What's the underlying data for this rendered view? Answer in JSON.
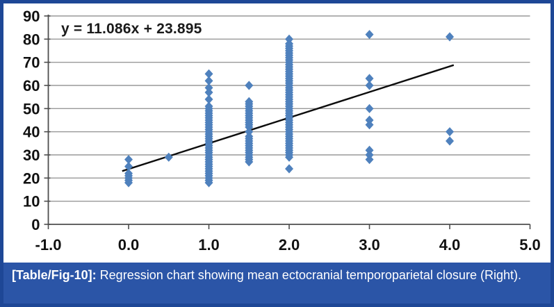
{
  "caption": {
    "label": "[Table/Fig-10]:",
    "text": " Regression chart showing mean ectocranial temporoparietal closure (Right)."
  },
  "colors": {
    "marker": "#4F81BD",
    "trendline": "#0d0d0d",
    "gridline": "#999999",
    "axis": "#4d4d4d",
    "tick_text": "#111111",
    "chart_bg": "#ffffff",
    "caption_bg": "#2B55A7",
    "border": "#1E4796",
    "caption_text": "#ffffff"
  },
  "chart_data": {
    "type": "scatter",
    "title": "",
    "xlabel": "",
    "ylabel": "",
    "equation": "y = 11.086x + 23.895",
    "xlim": [
      -1.0,
      5.0
    ],
    "ylim": [
      0,
      90
    ],
    "grid": true,
    "legend_position": "none",
    "x_tick_values": [
      -1,
      0,
      1,
      2,
      3,
      4,
      5
    ],
    "x_tick_labels": [
      "-1.0",
      "0.0",
      "1.0",
      "2.0",
      "3.0",
      "4.0",
      "5.0"
    ],
    "y_tick_values": [
      0,
      10,
      20,
      30,
      40,
      50,
      60,
      70,
      80,
      90
    ],
    "y_tick_labels": [
      "0",
      "10",
      "20",
      "30",
      "40",
      "50",
      "60",
      "70",
      "80",
      "90"
    ],
    "trendline": {
      "slope": 11.086,
      "intercept": 23.895,
      "x_start": -0.08,
      "x_end": 4.05
    },
    "points": [
      {
        "x": 0.0,
        "y": [
          28,
          25,
          22,
          21,
          20,
          19,
          18
        ]
      },
      {
        "x": 0.5,
        "y": [
          29
        ]
      },
      {
        "x": 1.0,
        "y": [
          65,
          62,
          59,
          57,
          54,
          51,
          50,
          49,
          48,
          47,
          46,
          45,
          44,
          43,
          42,
          41,
          40,
          39,
          38,
          37,
          36,
          35,
          34,
          33,
          32,
          31,
          30,
          29,
          28,
          27,
          26,
          25,
          24,
          23,
          22,
          21,
          20,
          19,
          18
        ]
      },
      {
        "x": 1.5,
        "y": [
          60,
          53,
          52,
          51,
          50,
          49,
          48,
          47,
          46,
          45,
          44,
          43,
          42,
          40,
          38,
          37,
          36,
          35,
          34,
          33,
          32,
          31,
          30,
          29,
          28,
          27
        ]
      },
      {
        "x": 2.0,
        "y": [
          80,
          78,
          77,
          76,
          75,
          74,
          73,
          72,
          71,
          70,
          69,
          68,
          67,
          66,
          65,
          64,
          63,
          62,
          61,
          60,
          59,
          58,
          57,
          56,
          55,
          54,
          53,
          52,
          51,
          50,
          49,
          48,
          47,
          46,
          45,
          44,
          43,
          42,
          41,
          40,
          39,
          38,
          37,
          36,
          35,
          34,
          33,
          32,
          31,
          30,
          29,
          24
        ]
      },
      {
        "x": 3.0,
        "y": [
          82,
          63,
          60,
          50,
          45,
          43,
          32,
          30,
          28
        ]
      },
      {
        "x": 4.0,
        "y": [
          81,
          40,
          36
        ]
      }
    ]
  }
}
